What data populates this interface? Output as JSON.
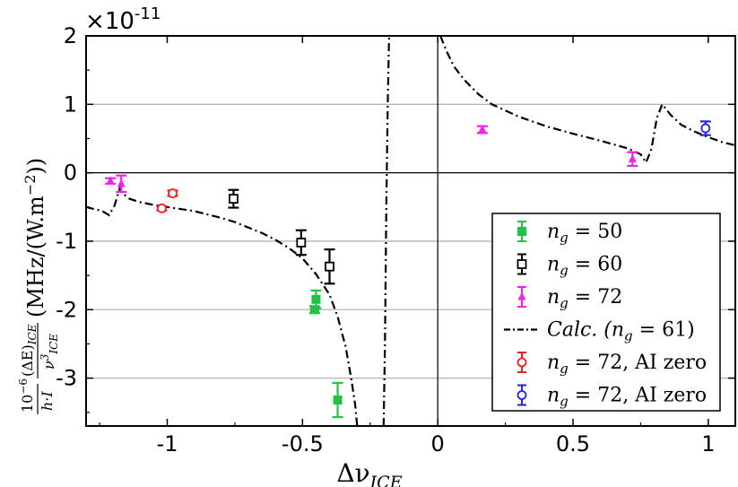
{
  "chart_data": {
    "type": "scatter",
    "title": "",
    "xlabel": "Δν_ICE",
    "ylabel": "10^-6/(h·I) · (ΔE)_ICE/ν³_ICE (MHz/(W.m^-2))",
    "y_scale_label": "×10^-11",
    "y_scale_factor": 1e-11,
    "xlim": [
      -1.3,
      1.1
    ],
    "ylim": [
      -3.7,
      2.0
    ],
    "xticks": [
      -1,
      -0.5,
      0,
      0.5,
      1
    ],
    "xtick_labels": [
      "-1",
      "-0.5",
      "0",
      "0.5",
      "1"
    ],
    "yticks": [
      2,
      1,
      0,
      -1,
      -2,
      -3
    ],
    "ytick_labels": [
      "2",
      "1",
      "0",
      "-1",
      "-2",
      "-3"
    ],
    "grid_y": [
      1,
      -1,
      -2,
      -3
    ],
    "legend_position": "lower-right",
    "series": [
      {
        "name": "n_g = 50",
        "label_parts": [
          "n",
          "g",
          " = 50"
        ],
        "marker": "square-filled",
        "color": "#22c244",
        "points": [
          {
            "x": -0.45,
            "y": -1.85,
            "err": 0.13
          },
          {
            "x": -0.455,
            "y": -2.0,
            "err": 0.05
          },
          {
            "x": -0.37,
            "y": -3.32,
            "err": 0.25
          }
        ]
      },
      {
        "name": "n_g = 60",
        "label_parts": [
          "n",
          "g",
          " = 60"
        ],
        "marker": "square-open",
        "color": "#000000",
        "points": [
          {
            "x": -0.755,
            "y": -0.38,
            "err": 0.13
          },
          {
            "x": -0.505,
            "y": -1.02,
            "err": 0.18
          },
          {
            "x": -0.4,
            "y": -1.37,
            "err": 0.25
          }
        ]
      },
      {
        "name": "n_g = 72",
        "label_parts": [
          "n",
          "g",
          " = 72"
        ],
        "marker": "triangle-filled",
        "color": "#ee22ee",
        "points": [
          {
            "x": -1.21,
            "y": -0.12,
            "err": 0.04
          },
          {
            "x": -1.17,
            "y": -0.16,
            "err": 0.12
          },
          {
            "x": 0.165,
            "y": 0.63,
            "err": 0.05
          },
          {
            "x": 0.72,
            "y": 0.2,
            "err": 0.1
          }
        ]
      },
      {
        "name": "Calc. (n_g = 61)",
        "label_parts": [
          "Calc. (n",
          "g",
          " = 61)"
        ],
        "marker": "dashdot-line",
        "color": "#000000",
        "curve_segments": [
          [
            [
              -1.3,
              -0.5
            ],
            [
              -1.24,
              -0.56
            ],
            [
              -1.215,
              -0.62
            ],
            [
              -1.195,
              -0.48
            ],
            [
              -1.175,
              -0.22
            ],
            [
              -1.165,
              -0.3
            ],
            [
              -1.14,
              -0.38
            ],
            [
              -1.1,
              -0.43
            ],
            [
              -1.05,
              -0.47
            ],
            [
              -1.0,
              -0.5
            ],
            [
              -0.95,
              -0.53
            ],
            [
              -0.9,
              -0.56
            ],
            [
              -0.85,
              -0.61
            ],
            [
              -0.8,
              -0.66
            ],
            [
              -0.75,
              -0.72
            ],
            [
              -0.7,
              -0.8
            ],
            [
              -0.65,
              -0.88
            ],
            [
              -0.6,
              -0.98
            ],
            [
              -0.55,
              -1.1
            ],
            [
              -0.5,
              -1.25
            ],
            [
              -0.45,
              -1.48
            ],
            [
              -0.4,
              -1.78
            ],
            [
              -0.37,
              -2.1
            ],
            [
              -0.34,
              -2.55
            ],
            [
              -0.32,
              -3.0
            ],
            [
              -0.305,
              -3.4
            ],
            [
              -0.298,
              -3.7
            ]
          ],
          [
            [
              -0.2,
              -3.7
            ],
            [
              -0.195,
              -2.5
            ],
            [
              -0.19,
              -0.5
            ],
            [
              -0.185,
              1.0
            ],
            [
              -0.18,
              2.0
            ]
          ],
          [
            [
              0.01,
              2.0
            ],
            [
              0.03,
              1.8
            ],
            [
              0.06,
              1.55
            ],
            [
              0.1,
              1.35
            ],
            [
              0.15,
              1.15
            ],
            [
              0.2,
              1.0
            ],
            [
              0.3,
              0.82
            ],
            [
              0.4,
              0.68
            ],
            [
              0.5,
              0.57
            ],
            [
              0.6,
              0.47
            ],
            [
              0.7,
              0.36
            ],
            [
              0.75,
              0.27
            ],
            [
              0.77,
              0.15
            ],
            [
              0.79,
              0.35
            ],
            [
              0.81,
              0.8
            ],
            [
              0.83,
              1.0
            ],
            [
              0.86,
              0.85
            ],
            [
              0.9,
              0.7
            ],
            [
              0.95,
              0.6
            ],
            [
              1.0,
              0.52
            ],
            [
              1.05,
              0.45
            ],
            [
              1.1,
              0.4
            ]
          ]
        ]
      },
      {
        "name": "n_g = 72, AI zero",
        "label_parts": [
          "n",
          "g",
          " = 72, AI zero"
        ],
        "marker": "circle-open",
        "color": "#ee2222",
        "points": [
          {
            "x": -1.02,
            "y": -0.52,
            "err": 0.03
          },
          {
            "x": -0.98,
            "y": -0.3,
            "err": 0.04
          }
        ]
      },
      {
        "name": "n_g = 72, AI zero",
        "label_parts": [
          "n",
          "g",
          " = 72, AI zero"
        ],
        "marker": "circle-open",
        "color": "#2222ee",
        "points": [
          {
            "x": 0.99,
            "y": 0.65,
            "err": 0.1
          }
        ]
      }
    ]
  }
}
